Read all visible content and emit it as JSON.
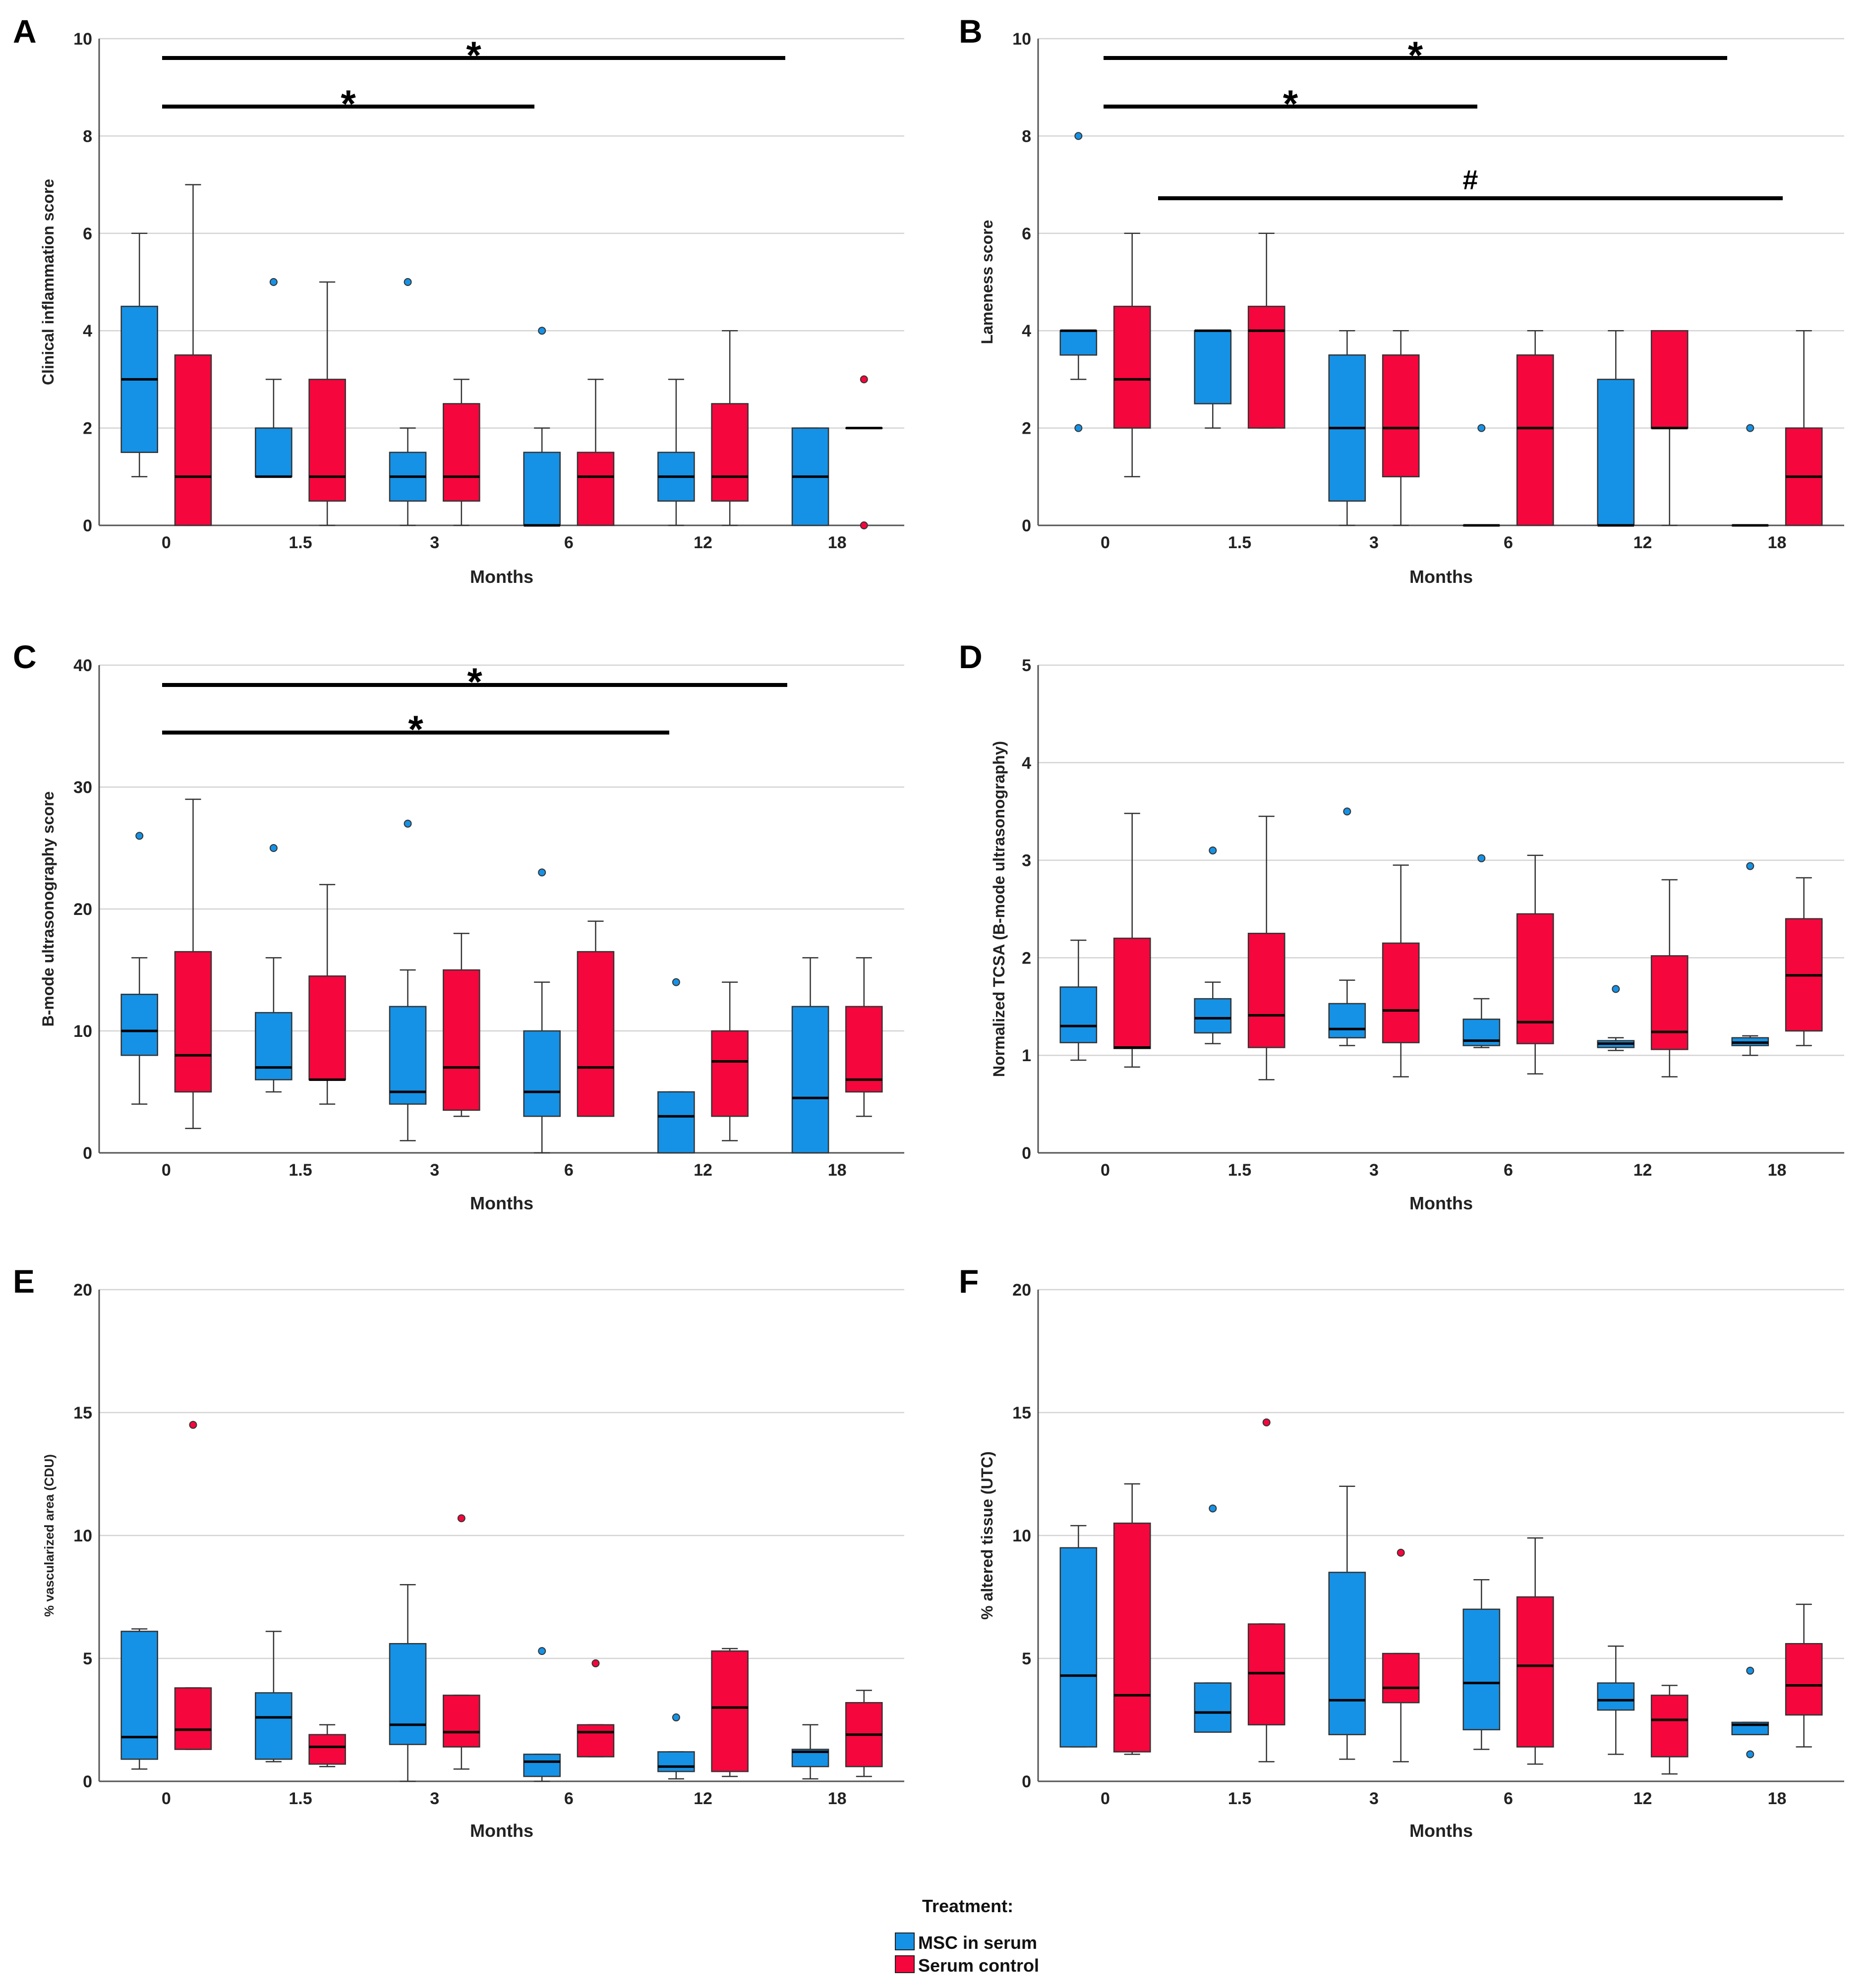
{
  "colors": {
    "msc": "#1592e6",
    "control": "#f5063d"
  },
  "legend": {
    "title": "Treatment:",
    "items": [
      {
        "label": "MSC in serum",
        "color": "#1592e6"
      },
      {
        "label": "Serum control",
        "color": "#f5063d"
      }
    ]
  },
  "chart_data": [
    {
      "panel": "A",
      "type": "boxplot",
      "xlabel": "Months",
      "ylabel": "Clinical inflammation score",
      "categories": [
        "0",
        "1.5",
        "3",
        "6",
        "12",
        "18"
      ],
      "ylim": [
        0,
        10
      ],
      "yticks": [
        0,
        2,
        4,
        6,
        8,
        10
      ],
      "series": [
        {
          "name": "MSC in serum",
          "boxes": [
            {
              "min": 1,
              "q1": 1.5,
              "median": 3,
              "q3": 4.5,
              "max": 6,
              "outliers": []
            },
            {
              "min": 1,
              "q1": 1,
              "median": 1,
              "q3": 2,
              "max": 3,
              "outliers": [
                5
              ]
            },
            {
              "min": 0,
              "q1": 0.5,
              "median": 1,
              "q3": 1.5,
              "max": 2,
              "outliers": [
                5
              ]
            },
            {
              "min": 0,
              "q1": 0,
              "median": 0,
              "q3": 1.5,
              "max": 2,
              "outliers": [
                4
              ]
            },
            {
              "min": 0,
              "q1": 0.5,
              "median": 1,
              "q3": 1.5,
              "max": 3,
              "outliers": []
            },
            {
              "min": 0,
              "q1": 0,
              "median": 1,
              "q3": 2,
              "max": 2,
              "outliers": []
            }
          ]
        },
        {
          "name": "Serum control",
          "boxes": [
            {
              "min": 0,
              "q1": 0,
              "median": 1,
              "q3": 3.5,
              "max": 7,
              "outliers": []
            },
            {
              "min": 0,
              "q1": 0.5,
              "median": 1,
              "q3": 3,
              "max": 5,
              "outliers": []
            },
            {
              "min": 0,
              "q1": 0.5,
              "median": 1,
              "q3": 2.5,
              "max": 3,
              "outliers": []
            },
            {
              "min": 0,
              "q1": 0,
              "median": 1,
              "q3": 1.5,
              "max": 3,
              "outliers": []
            },
            {
              "min": 0,
              "q1": 0.5,
              "median": 1,
              "q3": 2.5,
              "max": 4,
              "outliers": []
            },
            {
              "min": 2,
              "q1": 2,
              "median": 2,
              "q3": 2,
              "max": 2,
              "outliers": [
                0,
                3
              ]
            }
          ]
        }
      ],
      "significance": [
        {
          "from": "0",
          "to": "18",
          "label": "*"
        },
        {
          "from": "0",
          "to": "6",
          "label": "*"
        }
      ]
    },
    {
      "panel": "B",
      "type": "boxplot",
      "xlabel": "Months",
      "ylabel": "Lameness score",
      "categories": [
        "0",
        "1.5",
        "3",
        "6",
        "12",
        "18"
      ],
      "ylim": [
        0,
        10
      ],
      "yticks": [
        0,
        2,
        4,
        6,
        8,
        10
      ],
      "series": [
        {
          "name": "MSC in serum",
          "boxes": [
            {
              "min": 3,
              "q1": 3.5,
              "median": 4,
              "q3": 4,
              "max": 4,
              "outliers": [
                2,
                8
              ]
            },
            {
              "min": 2,
              "q1": 2.5,
              "median": 4,
              "q3": 4,
              "max": 4,
              "outliers": []
            },
            {
              "min": 0,
              "q1": 0.5,
              "median": 2,
              "q3": 3.5,
              "max": 4,
              "outliers": []
            },
            {
              "min": 0,
              "q1": 0,
              "median": 0,
              "q3": 0,
              "max": 0,
              "outliers": [
                2
              ]
            },
            {
              "min": 0,
              "q1": 0,
              "median": 0,
              "q3": 3,
              "max": 4,
              "outliers": []
            },
            {
              "min": 0,
              "q1": 0,
              "median": 0,
              "q3": 0,
              "max": 0,
              "outliers": [
                2
              ]
            }
          ]
        },
        {
          "name": "Serum control",
          "boxes": [
            {
              "min": 1,
              "q1": 2,
              "median": 3,
              "q3": 4.5,
              "max": 6,
              "outliers": []
            },
            {
              "min": 2,
              "q1": 2,
              "median": 4,
              "q3": 4.5,
              "max": 6,
              "outliers": []
            },
            {
              "min": 0,
              "q1": 1,
              "median": 2,
              "q3": 3.5,
              "max": 4,
              "outliers": []
            },
            {
              "min": 0,
              "q1": 0,
              "median": 2,
              "q3": 3.5,
              "max": 4,
              "outliers": []
            },
            {
              "min": 0,
              "q1": 2,
              "median": 2,
              "q3": 4,
              "max": 4,
              "outliers": []
            },
            {
              "min": 0,
              "q1": 0,
              "median": 1,
              "q3": 2,
              "max": 4,
              "outliers": []
            }
          ]
        }
      ],
      "significance": [
        {
          "from": "0",
          "to": "18",
          "label": "*"
        },
        {
          "from": "0",
          "to": "6",
          "label": "*"
        },
        {
          "from": "0",
          "to": "18",
          "label": "#"
        }
      ]
    },
    {
      "panel": "C",
      "type": "boxplot",
      "xlabel": "Months",
      "ylabel": "B-mode ultrasonography score",
      "categories": [
        "0",
        "1.5",
        "3",
        "6",
        "12",
        "18"
      ],
      "ylim": [
        0,
        40
      ],
      "yticks": [
        0,
        10,
        20,
        30,
        40
      ],
      "series": [
        {
          "name": "MSC in serum",
          "boxes": [
            {
              "min": 4,
              "q1": 8,
              "median": 10,
              "q3": 13,
              "max": 16,
              "outliers": [
                26
              ]
            },
            {
              "min": 5,
              "q1": 6,
              "median": 7,
              "q3": 11.5,
              "max": 16,
              "outliers": [
                25
              ]
            },
            {
              "min": 1,
              "q1": 4,
              "median": 5,
              "q3": 12,
              "max": 15,
              "outliers": [
                27
              ]
            },
            {
              "min": 0,
              "q1": 3,
              "median": 5,
              "q3": 10,
              "max": 14,
              "outliers": [
                23
              ]
            },
            {
              "min": 0,
              "q1": 0,
              "median": 3,
              "q3": 5,
              "max": 5,
              "outliers": [
                14
              ]
            },
            {
              "min": 0,
              "q1": 0,
              "median": 4.5,
              "q3": 12,
              "max": 16,
              "outliers": []
            }
          ]
        },
        {
          "name": "Serum control",
          "boxes": [
            {
              "min": 2,
              "q1": 5,
              "median": 8,
              "q3": 16.5,
              "max": 29,
              "outliers": []
            },
            {
              "min": 4,
              "q1": 6,
              "median": 6,
              "q3": 14.5,
              "max": 22,
              "outliers": []
            },
            {
              "min": 3,
              "q1": 3.5,
              "median": 7,
              "q3": 15,
              "max": 18,
              "outliers": []
            },
            {
              "min": 3,
              "q1": 3,
              "median": 7,
              "q3": 16.5,
              "max": 19,
              "outliers": []
            },
            {
              "min": 1,
              "q1": 3,
              "median": 7.5,
              "q3": 10,
              "max": 14,
              "outliers": []
            },
            {
              "min": 3,
              "q1": 5,
              "median": 6,
              "q3": 12,
              "max": 16,
              "outliers": []
            }
          ]
        }
      ],
      "significance": [
        {
          "from": "0",
          "to": "18",
          "label": "*"
        },
        {
          "from": "0",
          "to": "12",
          "label": "*"
        }
      ]
    },
    {
      "panel": "D",
      "type": "boxplot",
      "xlabel": "Months",
      "ylabel": "Normalized TCSA (B-mode ultrasonography)",
      "categories": [
        "0",
        "1.5",
        "3",
        "6",
        "12",
        "18"
      ],
      "ylim": [
        0,
        5
      ],
      "yticks": [
        0,
        1,
        2,
        3,
        4,
        5
      ],
      "series": [
        {
          "name": "MSC in serum",
          "boxes": [
            {
              "min": 0.95,
              "q1": 1.13,
              "median": 1.3,
              "q3": 1.7,
              "max": 2.18,
              "outliers": []
            },
            {
              "min": 1.12,
              "q1": 1.23,
              "median": 1.38,
              "q3": 1.58,
              "max": 1.75,
              "outliers": [
                3.1
              ]
            },
            {
              "min": 1.1,
              "q1": 1.18,
              "median": 1.27,
              "q3": 1.53,
              "max": 1.77,
              "outliers": [
                3.5
              ]
            },
            {
              "min": 1.08,
              "q1": 1.1,
              "median": 1.15,
              "q3": 1.37,
              "max": 1.58,
              "outliers": [
                3.02
              ]
            },
            {
              "min": 1.05,
              "q1": 1.08,
              "median": 1.12,
              "q3": 1.15,
              "max": 1.18,
              "outliers": [
                1.68
              ]
            },
            {
              "min": 1.0,
              "q1": 1.1,
              "median": 1.13,
              "q3": 1.18,
              "max": 1.2,
              "outliers": [
                2.94
              ]
            }
          ]
        },
        {
          "name": "Serum control",
          "boxes": [
            {
              "min": 0.88,
              "q1": 1.07,
              "median": 1.08,
              "q3": 2.2,
              "max": 3.48,
              "outliers": []
            },
            {
              "min": 0.75,
              "q1": 1.08,
              "median": 1.41,
              "q3": 2.25,
              "max": 3.45,
              "outliers": []
            },
            {
              "min": 0.78,
              "q1": 1.13,
              "median": 1.46,
              "q3": 2.15,
              "max": 2.95,
              "outliers": []
            },
            {
              "min": 0.81,
              "q1": 1.12,
              "median": 1.34,
              "q3": 2.45,
              "max": 3.05,
              "outliers": []
            },
            {
              "min": 0.78,
              "q1": 1.06,
              "median": 1.24,
              "q3": 2.02,
              "max": 2.8,
              "outliers": []
            },
            {
              "min": 1.1,
              "q1": 1.25,
              "median": 1.82,
              "q3": 2.4,
              "max": 2.82,
              "outliers": []
            }
          ]
        }
      ],
      "significance": []
    },
    {
      "panel": "E",
      "type": "boxplot",
      "xlabel": "Months",
      "ylabel": "% vascularized area (CDU)",
      "categories": [
        "0",
        "1.5",
        "3",
        "6",
        "12",
        "18"
      ],
      "ylim": [
        0,
        20
      ],
      "yticks": [
        0,
        5,
        10,
        15,
        20
      ],
      "series": [
        {
          "name": "MSC in serum",
          "boxes": [
            {
              "min": 0.5,
              "q1": 0.9,
              "median": 1.8,
              "q3": 6.1,
              "max": 6.2,
              "outliers": []
            },
            {
              "min": 0.8,
              "q1": 0.9,
              "median": 2.6,
              "q3": 3.6,
              "max": 6.1,
              "outliers": []
            },
            {
              "min": 0.0,
              "q1": 1.5,
              "median": 2.3,
              "q3": 5.6,
              "max": 8.0,
              "outliers": []
            },
            {
              "min": 0.0,
              "q1": 0.2,
              "median": 0.8,
              "q3": 1.1,
              "max": 1.1,
              "outliers": [
                5.3
              ]
            },
            {
              "min": 0.1,
              "q1": 0.4,
              "median": 0.6,
              "q3": 1.2,
              "max": 1.2,
              "outliers": [
                2.6
              ]
            },
            {
              "min": 0.1,
              "q1": 0.6,
              "median": 1.2,
              "q3": 1.3,
              "max": 2.3,
              "outliers": []
            }
          ]
        },
        {
          "name": "Serum control",
          "boxes": [
            {
              "min": 1.3,
              "q1": 1.3,
              "median": 2.1,
              "q3": 3.8,
              "max": 3.8,
              "outliers": [
                14.5
              ]
            },
            {
              "min": 0.6,
              "q1": 0.7,
              "median": 1.4,
              "q3": 1.9,
              "max": 2.3,
              "outliers": []
            },
            {
              "min": 0.5,
              "q1": 1.4,
              "median": 2.0,
              "q3": 3.5,
              "max": 3.5,
              "outliers": [
                10.7
              ]
            },
            {
              "min": 1.0,
              "q1": 1.0,
              "median": 2.0,
              "q3": 2.3,
              "max": 2.3,
              "outliers": [
                4.8
              ]
            },
            {
              "min": 0.2,
              "q1": 0.4,
              "median": 3.0,
              "q3": 5.3,
              "max": 5.4,
              "outliers": []
            },
            {
              "min": 0.2,
              "q1": 0.6,
              "median": 1.9,
              "q3": 3.2,
              "max": 3.7,
              "outliers": []
            }
          ]
        }
      ],
      "significance": []
    },
    {
      "panel": "F",
      "type": "boxplot",
      "xlabel": "Months",
      "ylabel": "% altered tissue (UTC)",
      "categories": [
        "0",
        "1.5",
        "3",
        "6",
        "12",
        "18"
      ],
      "ylim": [
        0,
        20
      ],
      "yticks": [
        0,
        5,
        10,
        15,
        20
      ],
      "series": [
        {
          "name": "MSC in serum",
          "boxes": [
            {
              "min": 1.4,
              "q1": 1.4,
              "median": 4.3,
              "q3": 9.5,
              "max": 10.4,
              "outliers": []
            },
            {
              "min": 2.0,
              "q1": 2.0,
              "median": 2.8,
              "q3": 4.0,
              "max": 4.0,
              "outliers": [
                11.1
              ]
            },
            {
              "min": 0.9,
              "q1": 1.9,
              "median": 3.3,
              "q3": 8.5,
              "max": 12.0,
              "outliers": []
            },
            {
              "min": 1.3,
              "q1": 2.1,
              "median": 4.0,
              "q3": 7.0,
              "max": 8.2,
              "outliers": []
            },
            {
              "min": 1.1,
              "q1": 2.9,
              "median": 3.3,
              "q3": 4.0,
              "max": 5.5,
              "outliers": []
            },
            {
              "min": 1.9,
              "q1": 1.9,
              "median": 2.3,
              "q3": 2.4,
              "max": 2.4,
              "outliers": [
                4.5,
                1.1
              ]
            }
          ]
        },
        {
          "name": "Serum control",
          "boxes": [
            {
              "min": 1.1,
              "q1": 1.2,
              "median": 3.5,
              "q3": 10.5,
              "max": 12.1,
              "outliers": []
            },
            {
              "min": 0.8,
              "q1": 2.3,
              "median": 4.4,
              "q3": 6.4,
              "max": 6.4,
              "outliers": [
                14.6
              ]
            },
            {
              "min": 0.8,
              "q1": 3.2,
              "median": 3.8,
              "q3": 5.2,
              "max": 5.2,
              "outliers": [
                9.3
              ]
            },
            {
              "min": 0.7,
              "q1": 1.4,
              "median": 4.7,
              "q3": 7.5,
              "max": 9.9,
              "outliers": []
            },
            {
              "min": 0.3,
              "q1": 1.0,
              "median": 2.5,
              "q3": 3.5,
              "max": 3.9,
              "outliers": []
            },
            {
              "min": 1.4,
              "q1": 2.7,
              "median": 3.9,
              "q3": 5.6,
              "max": 7.2,
              "outliers": []
            }
          ]
        }
      ],
      "significance": []
    }
  ]
}
